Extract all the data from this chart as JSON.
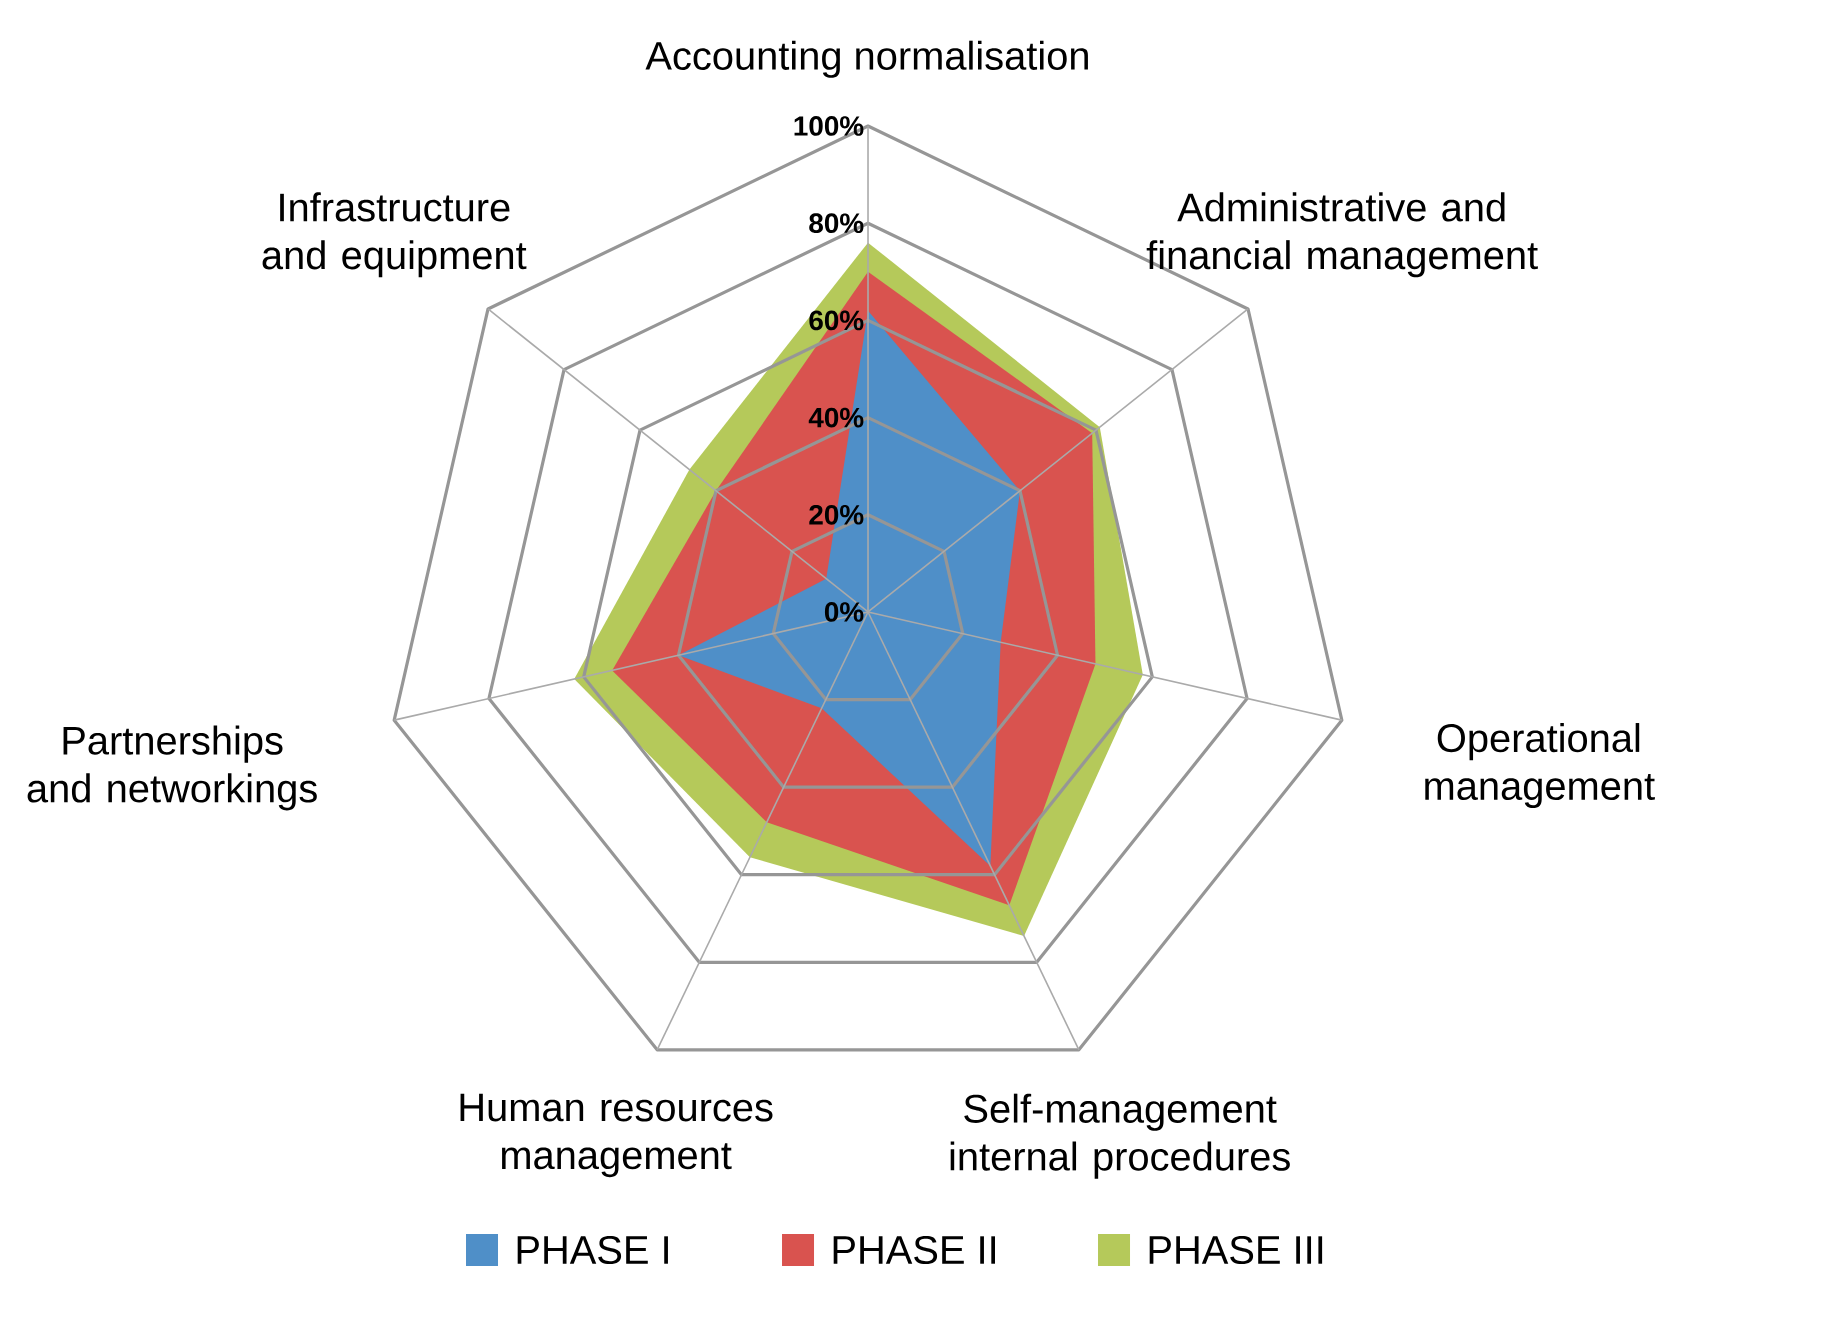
{
  "chart_data": {
    "type": "radar",
    "categories": [
      "Accounting normalisation",
      "Administrative and financial management",
      "Operational management",
      "Self-management internal procedures",
      "Human resources management",
      "Partnerships and networkings",
      "Infrastructure and equipment"
    ],
    "series": [
      {
        "name": "PHASE I",
        "color": "#4f8fc8",
        "values": [
          62,
          40,
          28,
          58,
          22,
          40,
          11
        ]
      },
      {
        "name": "PHASE II",
        "color": "#d9534f",
        "values": [
          70,
          59,
          48,
          67,
          48,
          54,
          40
        ]
      },
      {
        "name": "PHASE III",
        "color": "#b5c95a",
        "values": [
          76,
          61,
          58,
          74,
          56,
          62,
          47
        ]
      }
    ],
    "ylim": [
      0,
      100
    ],
    "yticks": [
      {
        "value": 0,
        "label": "0%"
      },
      {
        "value": 20,
        "label": "20%"
      },
      {
        "value": 40,
        "label": "40%"
      },
      {
        "value": 60,
        "label": "60%"
      },
      {
        "value": 80,
        "label": "80%"
      },
      {
        "value": 100,
        "label": "100%"
      }
    ],
    "grid": true,
    "legend": "bottom"
  }
}
